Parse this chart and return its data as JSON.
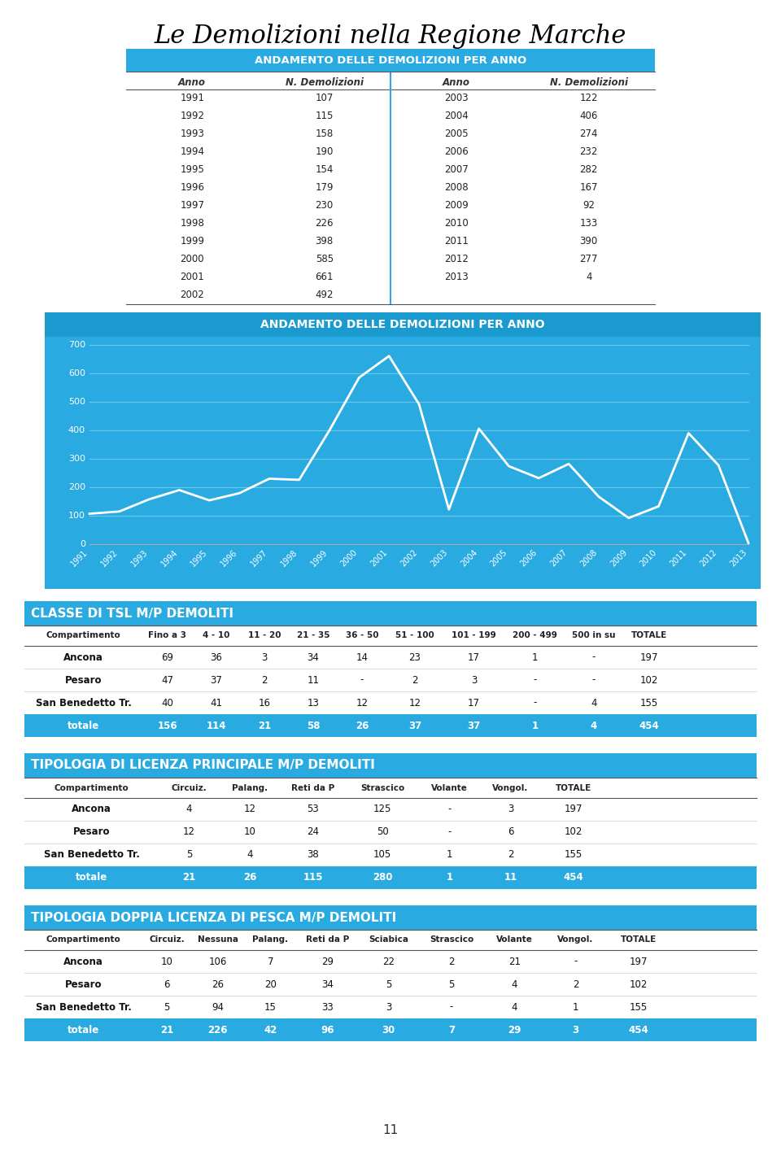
{
  "title": "Le Demolizioni nella Regione Marche",
  "table1_title": "ANDAMENTO DELLE DEMOLIZIONI PER ANNO",
  "years_left": [
    1991,
    1992,
    1993,
    1994,
    1995,
    1996,
    1997,
    1998,
    1999,
    2000,
    2001,
    2002
  ],
  "demo_left": [
    107,
    115,
    158,
    190,
    154,
    179,
    230,
    226,
    398,
    585,
    661,
    492
  ],
  "years_right": [
    2003,
    2004,
    2005,
    2006,
    2007,
    2008,
    2009,
    2010,
    2011,
    2012,
    2013
  ],
  "demo_right": [
    122,
    406,
    274,
    232,
    282,
    167,
    92,
    133,
    390,
    277,
    4
  ],
  "chart_title": "ANDAMENTO DELLE DEMOLIZIONI PER ANNO",
  "all_years": [
    1991,
    1992,
    1993,
    1994,
    1995,
    1996,
    1997,
    1998,
    1999,
    2000,
    2001,
    2002,
    2003,
    2004,
    2005,
    2006,
    2007,
    2008,
    2009,
    2010,
    2011,
    2012,
    2013
  ],
  "all_values": [
    107,
    115,
    158,
    190,
    154,
    179,
    230,
    226,
    398,
    585,
    661,
    492,
    122,
    406,
    274,
    232,
    282,
    167,
    92,
    133,
    390,
    277,
    4
  ],
  "chart_bg": "#29ABE2",
  "chart_line_color": "#FFFFFF",
  "chart_grid_color": "#6DC8E8",
  "table2_title": "CLASSE DI TSL M/P DEMOLITI",
  "tsl_headers": [
    "Compartimento",
    "Fino a 3",
    "4 - 10",
    "11 - 20",
    "21 - 35",
    "36 - 50",
    "51 - 100",
    "101 - 199",
    "200 - 499",
    "500 in su",
    "TOTALE"
  ],
  "tsl_rows": [
    [
      "Ancona",
      "69",
      "36",
      "3",
      "34",
      "14",
      "23",
      "17",
      "1",
      "-",
      "197"
    ],
    [
      "Pesaro",
      "47",
      "37",
      "2",
      "11",
      "-",
      "2",
      "3",
      "-",
      "-",
      "102"
    ],
    [
      "San Benedetto Tr.",
      "40",
      "41",
      "16",
      "13",
      "12",
      "12",
      "17",
      "-",
      "4",
      "155"
    ]
  ],
  "tsl_totale": [
    "totale",
    "156",
    "114",
    "21",
    "58",
    "26",
    "37",
    "37",
    "1",
    "4",
    "454"
  ],
  "table3_title": "TIPOLOGIA DI LICENZA PRINCIPALE M/P DEMOLITI",
  "lic_headers": [
    "Compartimento",
    "Circuiz.",
    "Palang.",
    "Reti da P",
    "Strascico",
    "Volante",
    "Vongol.",
    "TOTALE"
  ],
  "lic_rows": [
    [
      "Ancona",
      "4",
      "12",
      "53",
      "125",
      "-",
      "3",
      "197"
    ],
    [
      "Pesaro",
      "12",
      "10",
      "24",
      "50",
      "-",
      "6",
      "102"
    ],
    [
      "San Benedetto Tr.",
      "5",
      "4",
      "38",
      "105",
      "1",
      "2",
      "155"
    ]
  ],
  "lic_totale": [
    "totale",
    "21",
    "26",
    "115",
    "280",
    "1",
    "11",
    "454"
  ],
  "table4_title": "TIPOLOGIA DOPPIA LICENZA DI PESCA M/P DEMOLITI",
  "dop_headers": [
    "Compartimento",
    "Circuiz.",
    "Nessuna",
    "Palang.",
    "Reti da P",
    "Sciabica",
    "Strascico",
    "Volante",
    "Vongol.",
    "TOTALE"
  ],
  "dop_rows": [
    [
      "Ancona",
      "10",
      "106",
      "7",
      "29",
      "22",
      "2",
      "21",
      "-",
      "197"
    ],
    [
      "Pesaro",
      "6",
      "26",
      "20",
      "34",
      "5",
      "5",
      "4",
      "2",
      "102"
    ],
    [
      "San Benedetto Tr.",
      "5",
      "94",
      "15",
      "33",
      "3",
      "-",
      "4",
      "1",
      "155"
    ]
  ],
  "dop_totale": [
    "totale",
    "21",
    "226",
    "42",
    "96",
    "30",
    "7",
    "29",
    "3",
    "454"
  ],
  "page_number": "11",
  "bg_color": "#FFFFFF",
  "header_bg": "#29ABE2",
  "header_text": "#FFFFFF",
  "totale_bg": "#29ABE2",
  "totale_text": "#FFFFFF",
  "col_header_color": "#000000",
  "row_text_color": "#000000",
  "section_header_bg": "#29ABE2"
}
